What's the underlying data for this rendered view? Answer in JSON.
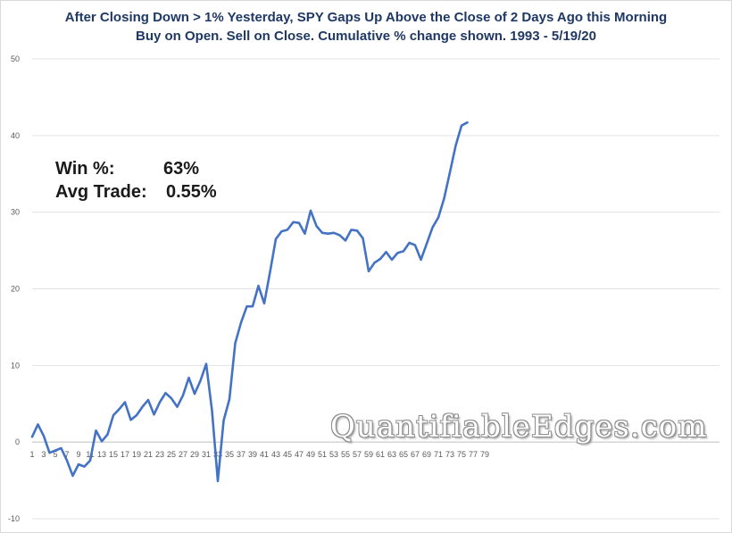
{
  "chart_data": {
    "type": "line",
    "title": "After Closing Down > 1% Yesterday, SPY Gaps Up Above the Close of 2 Days Ago this Morning",
    "subtitle": "Buy on Open. Sell on Close. Cumulative % change shown. 1993 - 5/19/20",
    "xlabel": "",
    "ylabel": "",
    "ylim": [
      -10,
      50
    ],
    "yticks": [
      -10,
      0,
      10,
      20,
      30,
      40,
      50
    ],
    "xlim": [
      1,
      79
    ],
    "xticks": [
      1,
      3,
      5,
      7,
      9,
      11,
      13,
      15,
      17,
      19,
      21,
      23,
      25,
      27,
      29,
      31,
      33,
      35,
      37,
      39,
      41,
      43,
      45,
      47,
      49,
      51,
      53,
      55,
      57,
      59,
      61,
      63,
      65,
      67,
      69,
      71,
      73,
      75,
      77,
      79
    ],
    "grid": "horizontal",
    "line_color": "#4472c4",
    "series": [
      {
        "values": [
          0.7,
          2.3,
          0.8,
          -1.4,
          -1.1,
          -0.8,
          -2.4,
          -4.4,
          -2.9,
          -3.2,
          -2.4,
          1.5,
          0.1,
          1.0,
          3.5,
          4.3,
          5.2,
          2.9,
          3.5,
          4.6,
          5.5,
          3.6,
          5.2,
          6.4,
          5.7,
          4.6,
          6.1,
          8.4,
          6.3,
          8.0,
          10.2,
          4.1,
          -5.1,
          2.8,
          5.6,
          12.9,
          15.6,
          17.7,
          17.7,
          20.4,
          18.1,
          22.2,
          26.5,
          27.5,
          27.7,
          28.7,
          28.6,
          27.2,
          30.2,
          28.2,
          27.3,
          27.2,
          27.3,
          27.0,
          26.3,
          27.7,
          27.6,
          26.6,
          22.3,
          23.4,
          23.9,
          24.8,
          23.8,
          24.7,
          24.9,
          26.0,
          25.7,
          23.8,
          25.9,
          28.0,
          29.3,
          31.8,
          35.2,
          38.7,
          41.3,
          41.7
        ]
      }
    ]
  },
  "stats": {
    "win_label": "Win %:",
    "win_value": "63%",
    "avg_label": "Avg Trade:",
    "avg_value": "0.55%"
  },
  "watermark": "QuantifiableEdges.com"
}
